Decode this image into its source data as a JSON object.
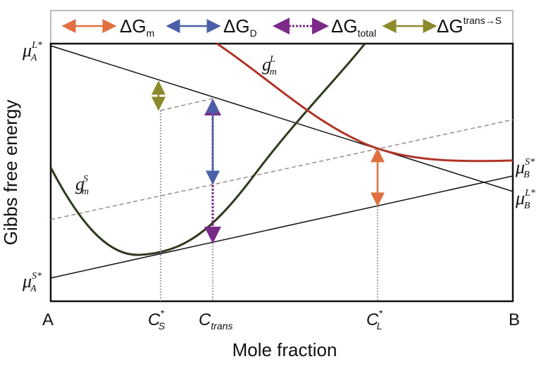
{
  "legend": [
    {
      "symbol": "ΔG",
      "sub": "m"
    },
    {
      "symbol": "ΔG",
      "sub": "D"
    },
    {
      "symbol": "ΔG",
      "sub": "total"
    },
    {
      "symbol": "ΔG",
      "sup": "trans→S"
    }
  ],
  "axes": {
    "y_label": "Gibbs free energy",
    "x_label": "Mole fraction",
    "x_ticks": [
      {
        "base": "A"
      },
      {
        "base": "C",
        "sup": "*",
        "sub": "S"
      },
      {
        "base": "C",
        "sub": "trans"
      },
      {
        "base": "C",
        "sup": "*",
        "sub": "L"
      },
      {
        "base": "B"
      }
    ]
  },
  "left_labels": [
    {
      "base": "μ",
      "sub": "A",
      "sup": "L*"
    },
    {
      "base": "μ",
      "sub": "A",
      "sup": "S*"
    }
  ],
  "right_labels": [
    {
      "base": "μ",
      "sub": "B",
      "sup": "S*"
    },
    {
      "base": "μ",
      "sub": "B",
      "sup": "L*"
    }
  ],
  "curve_labels": [
    {
      "base": "g",
      "sub": "m",
      "sup": "L"
    },
    {
      "base": "g",
      "sub": "m",
      "sup": "S"
    }
  ]
}
